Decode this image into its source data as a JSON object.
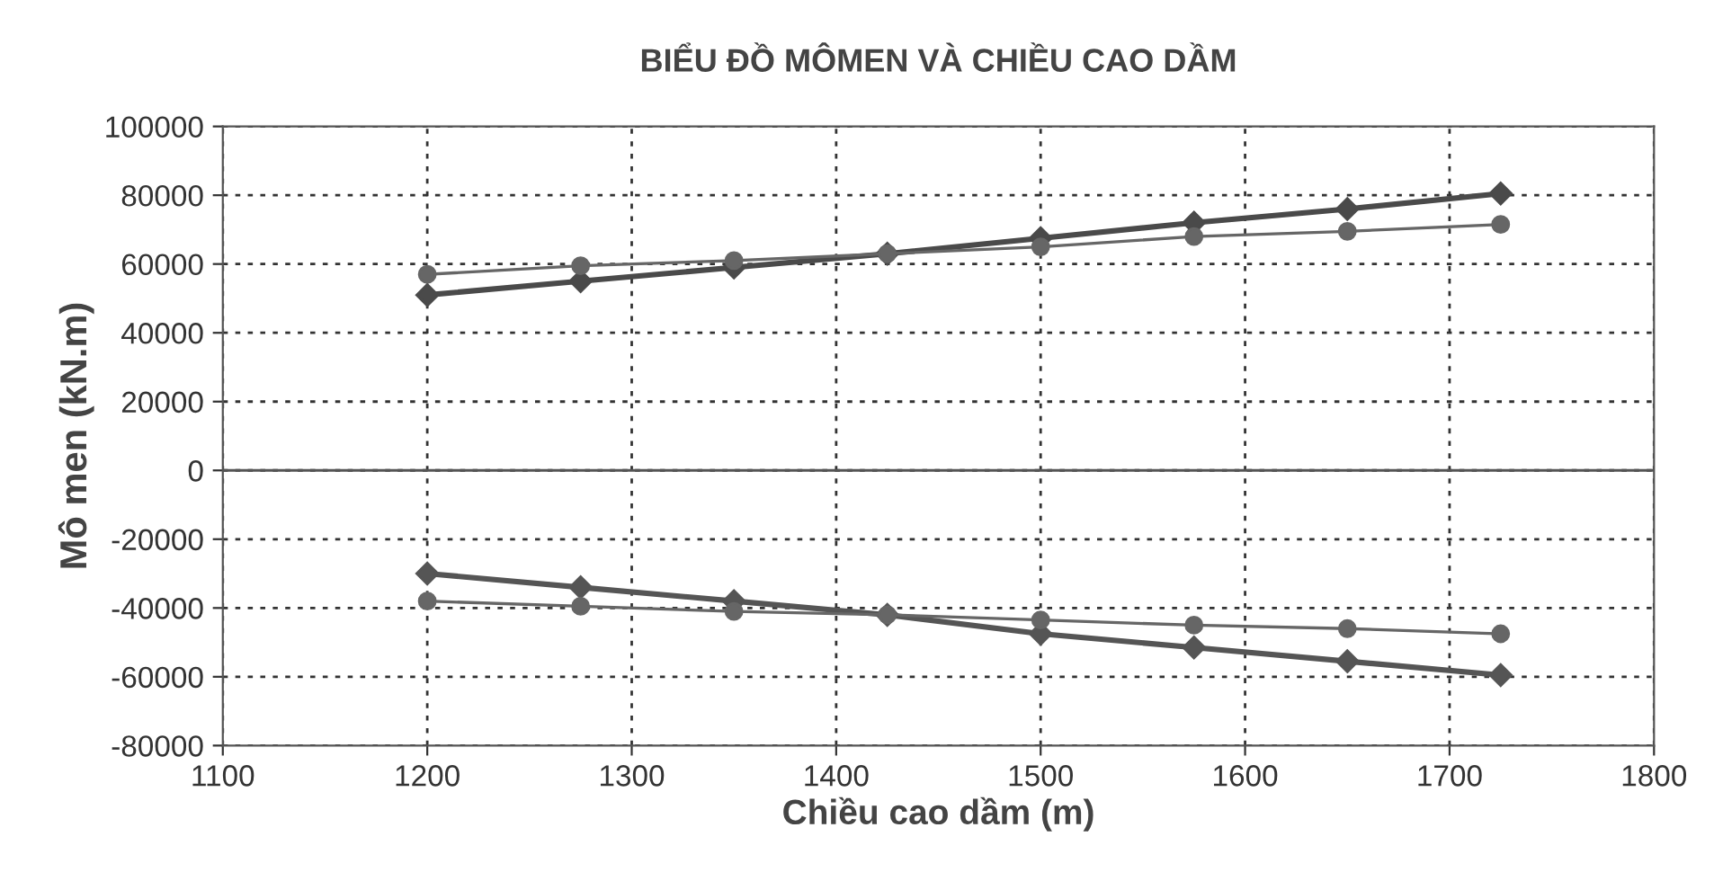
{
  "chart_data": {
    "type": "line",
    "title": "BIỂU ĐỒ MÔMEN VÀ CHIỀU CAO DẦM",
    "xlabel": "Chiều cao dầm (m)",
    "ylabel": "Mô men (kN.m)",
    "x": [
      1200,
      1275,
      1350,
      1425,
      1500,
      1575,
      1650,
      1725
    ],
    "series": [
      {
        "color": "#4a4a4a",
        "marker": "diamond",
        "values": [
          51000,
          55000,
          59000,
          63000,
          67500,
          72000,
          76000,
          80500
        ]
      },
      {
        "color": "#666666",
        "marker": "circle",
        "values": [
          57000,
          59500,
          61000,
          63000,
          65000,
          68000,
          69500,
          71500
        ]
      },
      {
        "color": "#555555",
        "marker": "diamond",
        "values": [
          -30000,
          -34000,
          -38000,
          -42000,
          -47500,
          -51500,
          -55500,
          -59500
        ]
      },
      {
        "color": "#666666",
        "marker": "circle",
        "values": [
          -38000,
          -39500,
          -41000,
          -42000,
          -43500,
          -45000,
          -46000,
          -47500
        ]
      }
    ],
    "xlim": [
      1100,
      1800
    ],
    "xticks": [
      1100,
      1200,
      1300,
      1400,
      1500,
      1600,
      1700,
      1800
    ],
    "ylim": [
      -80000,
      100000
    ],
    "yticks": [
      -80000,
      -60000,
      -40000,
      -20000,
      0,
      20000,
      40000,
      60000,
      80000,
      100000
    ],
    "grid": true,
    "line_style": "solid",
    "legend": false
  }
}
